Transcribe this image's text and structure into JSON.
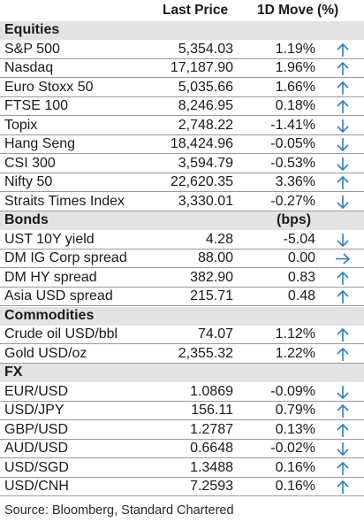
{
  "header": {
    "last_price": "Last Price",
    "move": "1D Move (%)"
  },
  "colors": {
    "arrow": "#2f7fc1",
    "section_bg": "#e3e3e3",
    "rule": "#9a9a9a"
  },
  "sections": [
    {
      "title": "Equities",
      "unit": "",
      "rows": [
        {
          "name": "S&P 500",
          "price": "5,354.03",
          "move": "1.19%",
          "dir": "up"
        },
        {
          "name": "Nasdaq",
          "price": "17,187.90",
          "move": "1.96%",
          "dir": "up"
        },
        {
          "name": "Euro Stoxx 50",
          "price": "5,035.66",
          "move": "1.66%",
          "dir": "up"
        },
        {
          "name": "FTSE 100",
          "price": "8,246.95",
          "move": "0.18%",
          "dir": "up"
        },
        {
          "name": "Topix",
          "price": "2,748.22",
          "move": "-1.41%",
          "dir": "down"
        },
        {
          "name": "Hang Seng",
          "price": "18,424.96",
          "move": "-0.05%",
          "dir": "down"
        },
        {
          "name": "CSI 300",
          "price": "3,594.79",
          "move": "-0.53%",
          "dir": "down"
        },
        {
          "name": "Nifty 50",
          "price": "22,620.35",
          "move": "3.36%",
          "dir": "up"
        },
        {
          "name": "Straits Times Index",
          "price": "3,330.01",
          "move": "-0.27%",
          "dir": "down"
        }
      ]
    },
    {
      "title": "Bonds",
      "unit": "(bps)",
      "rows": [
        {
          "name": "UST 10Y yield",
          "price": "4.28",
          "move": "-5.04",
          "dir": "down"
        },
        {
          "name": "DM IG Corp spread",
          "price": "88.00",
          "move": "0.00",
          "dir": "flat"
        },
        {
          "name": "DM HY spread",
          "price": "382.90",
          "move": "0.83",
          "dir": "up"
        },
        {
          "name": "Asia USD spread",
          "price": "215.71",
          "move": "0.48",
          "dir": "up"
        }
      ]
    },
    {
      "title": "Commodities",
      "unit": "",
      "rows": [
        {
          "name": "Crude oil USD/bbl",
          "price": "74.07",
          "move": "1.12%",
          "dir": "up"
        },
        {
          "name": "Gold USD/oz",
          "price": "2,355.32",
          "move": "1.22%",
          "dir": "up"
        }
      ]
    },
    {
      "title": "FX",
      "unit": "",
      "rows": [
        {
          "name": "EUR/USD",
          "price": "1.0869",
          "move": "-0.09%",
          "dir": "down"
        },
        {
          "name": "USD/JPY",
          "price": "156.11",
          "move": "0.79%",
          "dir": "up"
        },
        {
          "name": "GBP/USD",
          "price": "1.2787",
          "move": "0.13%",
          "dir": "up"
        },
        {
          "name": "AUD/USD",
          "price": "0.6648",
          "move": "-0.02%",
          "dir": "down"
        },
        {
          "name": "USD/SGD",
          "price": "1.3488",
          "move": "0.16%",
          "dir": "up"
        },
        {
          "name": "USD/CNH",
          "price": "7.2593",
          "move": "0.16%",
          "dir": "up"
        }
      ]
    }
  ],
  "source": "Source: Bloomberg, Standard Chartered"
}
